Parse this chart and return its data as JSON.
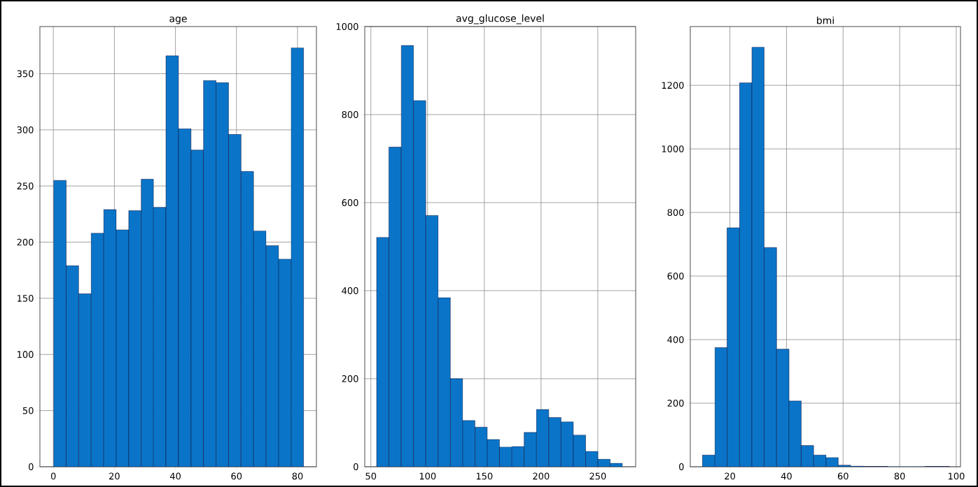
{
  "chart_data": [
    {
      "type": "histogram",
      "title": "age",
      "bins": [
        0.1,
        4.2,
        8.3,
        12.4,
        16.5,
        20.6,
        24.7,
        28.8,
        32.8,
        36.9,
        41.0,
        45.1,
        49.2,
        53.3,
        57.4,
        61.5,
        65.6,
        69.7,
        73.8,
        77.9,
        82.0
      ],
      "values": [
        255,
        179,
        154,
        208,
        229,
        211,
        228,
        256,
        231,
        366,
        301,
        282,
        344,
        342,
        296,
        263,
        210,
        197,
        185,
        373
      ],
      "color": "#0a75c8",
      "xlim": [
        -4.4,
        86.2
      ],
      "ylim": [
        0,
        392
      ],
      "xticks": [
        0,
        20,
        40,
        60,
        80
      ],
      "yticks": [
        0,
        50,
        100,
        150,
        200,
        250,
        300,
        350
      ],
      "grid": true
    },
    {
      "type": "histogram",
      "title": "avg_glucose_level",
      "bins": [
        55.1,
        65.9,
        76.8,
        87.6,
        98.4,
        109.3,
        120.1,
        130.9,
        141.8,
        152.6,
        163.4,
        174.3,
        185.1,
        195.9,
        206.8,
        217.6,
        228.4,
        239.3,
        250.1,
        260.9,
        271.7
      ],
      "values": [
        521,
        726,
        957,
        832,
        571,
        384,
        200,
        105,
        90,
        62,
        45,
        46,
        78,
        130,
        112,
        102,
        72,
        35,
        17,
        8
      ],
      "color": "#0a75c8",
      "xlim": [
        44.6,
        283.4
      ],
      "ylim": [
        0,
        1000
      ],
      "xticks": [
        50,
        100,
        150,
        200,
        250
      ],
      "yticks": [
        0,
        200,
        400,
        600,
        800,
        1000
      ],
      "grid": true
    },
    {
      "type": "histogram",
      "title": "bmi",
      "bins": [
        10.3,
        14.7,
        19.0,
        23.4,
        27.8,
        32.1,
        36.5,
        40.9,
        45.2,
        49.6,
        54.0,
        58.3,
        62.7,
        67.1,
        71.4,
        75.8,
        80.1,
        84.5,
        88.9,
        93.2,
        97.6
      ],
      "values": [
        37,
        375,
        752,
        1208,
        1320,
        690,
        370,
        207,
        67,
        37,
        29,
        5,
        2,
        1,
        1,
        0,
        0,
        0,
        1,
        1
      ],
      "color": "#0a75c8",
      "xlim": [
        6.0,
        101.5
      ],
      "ylim": [
        0,
        1385
      ],
      "xticks": [
        20,
        40,
        60,
        80,
        100
      ],
      "yticks": [
        0,
        200,
        400,
        600,
        800,
        1000,
        1200
      ],
      "grid": true
    }
  ]
}
